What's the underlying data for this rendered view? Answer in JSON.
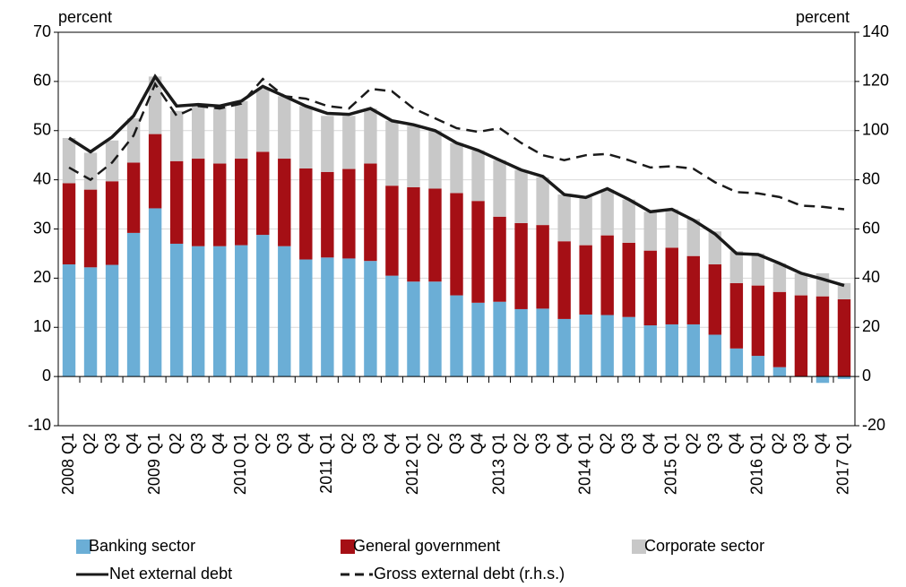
{
  "chart_data": {
    "type": "bar",
    "ylabel": "percent",
    "y2label": "percent",
    "categories": [
      "2008 Q1",
      "Q2",
      "Q3",
      "Q4",
      "2009 Q1",
      "Q2",
      "Q3",
      "Q4",
      "2010 Q1",
      "Q2",
      "Q3",
      "Q4",
      "2011 Q1",
      "Q2",
      "Q3",
      "Q4",
      "2012 Q1",
      "Q2",
      "Q3",
      "Q4",
      "2013 Q1",
      "Q2",
      "Q3",
      "Q4",
      "2014 Q1",
      "Q2",
      "Q3",
      "Q4",
      "2015 Q1",
      "Q2",
      "Q3",
      "Q4",
      "2016 Q1",
      "Q2",
      "Q3",
      "Q4",
      "2017 Q1"
    ],
    "series": [
      {
        "name": "Banking sector",
        "type": "bar",
        "color": "#6baed6",
        "values": [
          22.8,
          22.2,
          22.7,
          29.2,
          34.2,
          27,
          26.5,
          26.5,
          26.7,
          28.8,
          26.5,
          23.8,
          24.2,
          24,
          23.5,
          20.5,
          19.3,
          19.3,
          16.5,
          15,
          15.2,
          13.7,
          13.8,
          11.7,
          12.6,
          12.5,
          12.1,
          10.4,
          10.6,
          10.6,
          8.5,
          5.7,
          4.2,
          1.9,
          0,
          -1.3,
          -0.5
        ]
      },
      {
        "name": "General government",
        "type": "bar",
        "color": "#a50f15",
        "values": [
          16.5,
          15.8,
          17,
          14.3,
          15.1,
          16.8,
          17.8,
          16.8,
          17.6,
          16.9,
          17.8,
          18.5,
          17.4,
          18.2,
          19.8,
          18.3,
          19.2,
          18.9,
          20.8,
          20.7,
          17.3,
          17.5,
          17,
          15.8,
          14.1,
          16.2,
          15.1,
          15.2,
          15.6,
          13.9,
          14.3,
          13.3,
          14.3,
          15.3,
          16.5,
          16.3,
          15.7
        ]
      },
      {
        "name": "Corporate sector",
        "type": "bar",
        "color": "#c8c8c8",
        "values": [
          9.2,
          7.5,
          8.3,
          9,
          11.7,
          10.2,
          10.7,
          11.7,
          11.7,
          12.8,
          12.7,
          12.7,
          11.4,
          10.8,
          11.2,
          13.2,
          12.5,
          11.8,
          10.2,
          10.3,
          11.5,
          10.8,
          9.7,
          9.5,
          9.8,
          9.3,
          8.8,
          7.9,
          7.8,
          7.5,
          6.7,
          6.5,
          6.5,
          5.8,
          4.5,
          4.7,
          3.3
        ]
      },
      {
        "name": "Net external debt",
        "type": "line",
        "style": "solid",
        "color": "#1a1a1a",
        "values": [
          48.5,
          45.7,
          48.7,
          53,
          61,
          55,
          55.3,
          55,
          56,
          59,
          57,
          55,
          53.5,
          53.3,
          54.5,
          52,
          51.2,
          50,
          47.5,
          46,
          44,
          42,
          40.7,
          37,
          36.4,
          38.2,
          36,
          33.5,
          34,
          31.8,
          29,
          25,
          24.8,
          23,
          21,
          19.8,
          18.5
        ]
      },
      {
        "name": "Gross external debt (r.h.s.)",
        "type": "line",
        "style": "dashed",
        "axis": "y2",
        "color": "#1a1a1a",
        "values": [
          85,
          80,
          87,
          98,
          119,
          106,
          110,
          109,
          111,
          121,
          114,
          113,
          110,
          109,
          117,
          116,
          109,
          105,
          101,
          99.5,
          101,
          95,
          90,
          88,
          90,
          90.5,
          88,
          85,
          85.5,
          84.5,
          79,
          75,
          74.5,
          73,
          69.5,
          69,
          68
        ]
      }
    ],
    "ylim": [
      -10,
      70
    ],
    "yticks": [
      -10,
      0,
      10,
      20,
      30,
      40,
      50,
      60,
      70
    ],
    "y2lim": [
      -20,
      140
    ],
    "y2ticks": [
      -20,
      0,
      20,
      40,
      60,
      80,
      100,
      120,
      140
    ],
    "grid": true
  }
}
